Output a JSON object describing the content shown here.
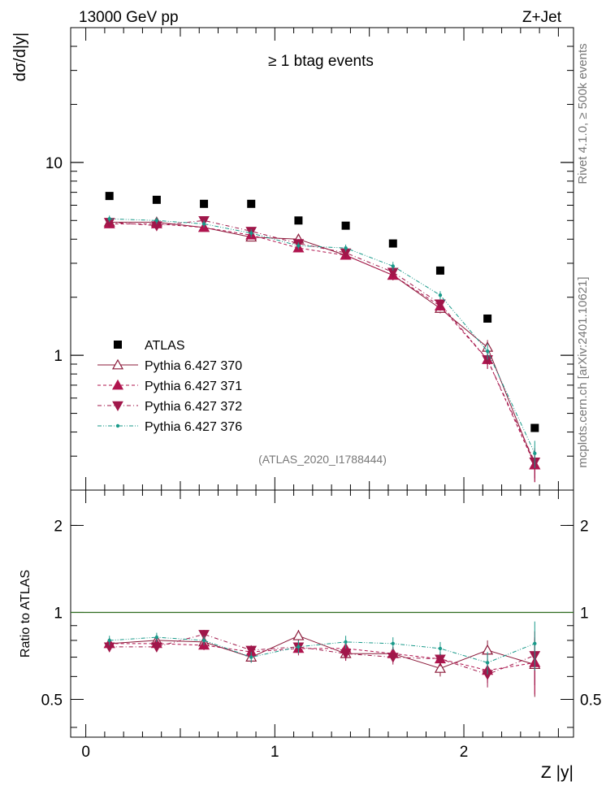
{
  "header": {
    "left_title": "13000 GeV pp",
    "right_title": "Z+Jet",
    "plot_label": "≥ 1 btag events",
    "analysis_id": "(ATLAS_2020_I1788444)",
    "side_note_top": "Rivet 4.1.0, ≥ 500k events",
    "side_note_bottom": "mcplots.cern.ch [arXiv:2401.10621]"
  },
  "chart_data": [
    {
      "id": "main",
      "type": "scatter",
      "yscale": "log",
      "ylabel": "dσ/d|y|",
      "xlim": [
        -0.08,
        2.58
      ],
      "ylim": [
        0.2,
        50
      ],
      "yticks": [
        {
          "v": 1,
          "label": "1"
        },
        {
          "v": 10,
          "label": "10"
        }
      ],
      "x": [
        0.125,
        0.375,
        0.625,
        0.875,
        1.125,
        1.375,
        1.625,
        1.875,
        2.125,
        2.375
      ],
      "series": [
        {
          "name": "ATLAS",
          "color": "#000000",
          "marker": "square",
          "line": "none",
          "values": [
            6.7,
            6.4,
            6.1,
            6.1,
            5.0,
            4.7,
            3.8,
            2.75,
            1.55,
            0.42
          ],
          "err": [
            0,
            0,
            0,
            0,
            0,
            0,
            0,
            0,
            0,
            0
          ]
        },
        {
          "name": "Pythia 6.427 370",
          "color": "#8b1a3a",
          "marker": "triangle-up-open",
          "line": "solid",
          "values": [
            4.9,
            4.9,
            4.6,
            4.1,
            4.0,
            3.3,
            2.6,
            1.75,
            1.1,
            0.27
          ],
          "err": [
            0.2,
            0.2,
            0.2,
            0.2,
            0.2,
            0.15,
            0.15,
            0.1,
            0.1,
            0.05
          ]
        },
        {
          "name": "Pythia 6.427 371",
          "color": "#b0144e",
          "marker": "triangle-up",
          "line": "dashed",
          "values": [
            4.8,
            4.8,
            4.6,
            4.2,
            3.6,
            3.3,
            2.6,
            1.8,
            0.95,
            0.27
          ],
          "err": [
            0.2,
            0.2,
            0.2,
            0.2,
            0.15,
            0.15,
            0.15,
            0.1,
            0.1,
            0.05
          ]
        },
        {
          "name": "Pythia 6.427 372",
          "color": "#a0174a",
          "marker": "triangle-down",
          "line": "dashdot",
          "values": [
            4.9,
            4.7,
            5.0,
            4.4,
            3.8,
            3.4,
            2.7,
            1.85,
            0.95,
            0.28
          ],
          "err": [
            0.2,
            0.2,
            0.2,
            0.2,
            0.2,
            0.15,
            0.15,
            0.1,
            0.1,
            0.05
          ]
        },
        {
          "name": "Pythia 6.427 376",
          "color": "#1a9a8a",
          "marker": "dot",
          "line": "dashdotdot",
          "values": [
            5.1,
            5.0,
            4.8,
            4.3,
            3.7,
            3.6,
            2.9,
            2.05,
            1.05,
            0.31
          ],
          "err": [
            0.2,
            0.2,
            0.2,
            0.2,
            0.15,
            0.15,
            0.15,
            0.1,
            0.1,
            0.05
          ]
        }
      ]
    },
    {
      "id": "ratio",
      "type": "scatter",
      "yscale": "log",
      "ylabel": "Ratio to ATLAS",
      "xlabel": "Z |y|",
      "xlim": [
        -0.08,
        2.58
      ],
      "ylim": [
        0.37,
        2.65
      ],
      "reference_line": 1,
      "yticks": [
        {
          "v": 0.5,
          "label": "0.5"
        },
        {
          "v": 1,
          "label": "1"
        },
        {
          "v": 2,
          "label": "2"
        }
      ],
      "xticks": [
        {
          "v": 0,
          "label": "0"
        },
        {
          "v": 1,
          "label": "1"
        },
        {
          "v": 2,
          "label": "2"
        }
      ],
      "x": [
        0.125,
        0.375,
        0.625,
        0.875,
        1.125,
        1.375,
        1.625,
        1.875,
        2.125,
        2.375
      ],
      "series": [
        {
          "name": "Pythia 6.427 370",
          "color": "#8b1a3a",
          "marker": "triangle-up-open",
          "line": "solid",
          "values": [
            0.78,
            0.8,
            0.79,
            0.7,
            0.83,
            0.72,
            0.72,
            0.64,
            0.74,
            0.66
          ],
          "err": [
            0.03,
            0.03,
            0.03,
            0.03,
            0.04,
            0.04,
            0.04,
            0.04,
            0.06,
            0.15
          ]
        },
        {
          "name": "Pythia 6.427 371",
          "color": "#b0144e",
          "marker": "triangle-up",
          "line": "dashed",
          "values": [
            0.78,
            0.78,
            0.77,
            0.73,
            0.75,
            0.75,
            0.72,
            0.69,
            0.63,
            0.67
          ],
          "err": [
            0.03,
            0.03,
            0.03,
            0.03,
            0.04,
            0.04,
            0.04,
            0.04,
            0.06,
            0.15
          ]
        },
        {
          "name": "Pythia 6.427 372",
          "color": "#a0174a",
          "marker": "triangle-down",
          "line": "dashdot",
          "values": [
            0.76,
            0.76,
            0.84,
            0.74,
            0.76,
            0.72,
            0.7,
            0.69,
            0.61,
            0.71
          ],
          "err": [
            0.03,
            0.03,
            0.03,
            0.03,
            0.04,
            0.04,
            0.04,
            0.04,
            0.06,
            0.15
          ]
        },
        {
          "name": "Pythia 6.427 376",
          "color": "#1a9a8a",
          "marker": "dot",
          "line": "dashdotdot",
          "values": [
            0.8,
            0.82,
            0.8,
            0.7,
            0.76,
            0.79,
            0.78,
            0.75,
            0.67,
            0.78
          ],
          "err": [
            0.03,
            0.03,
            0.03,
            0.03,
            0.04,
            0.04,
            0.04,
            0.04,
            0.06,
            0.15
          ]
        }
      ]
    }
  ]
}
